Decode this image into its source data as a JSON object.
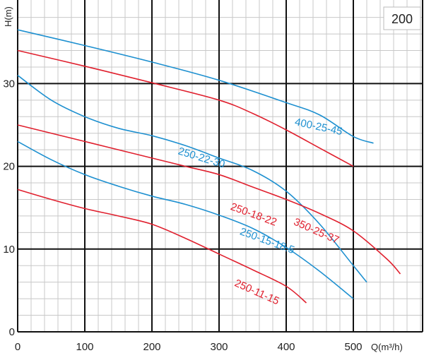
{
  "chart_data": {
    "type": "line",
    "badge": "200",
    "xlabel": "Q(m³/h)",
    "ylabel": "H(m)",
    "xlim": [
      0,
      600
    ],
    "ylim": [
      0,
      39
    ],
    "xticks": [
      0,
      100,
      200,
      300,
      400,
      500
    ],
    "yticks": [
      0,
      10,
      20,
      30
    ],
    "grid": true,
    "colors": {
      "blue": "#1e90d0",
      "red": "#e0202e"
    },
    "series": [
      {
        "name": "400-25-45",
        "color": "blue",
        "points": [
          [
            0,
            36.5
          ],
          [
            100,
            34.6
          ],
          [
            200,
            32.6
          ],
          [
            300,
            30.4
          ],
          [
            400,
            27.7
          ],
          [
            450,
            26.2
          ],
          [
            500,
            23.6
          ],
          [
            530,
            22.8
          ]
        ]
      },
      {
        "name": "350-25-37",
        "color": "red",
        "points": [
          [
            0,
            34
          ],
          [
            100,
            32.1
          ],
          [
            200,
            30.1
          ],
          [
            300,
            28
          ],
          [
            350,
            26.4
          ],
          [
            400,
            24.4
          ],
          [
            450,
            22.2
          ],
          [
            500,
            20
          ]
        ]
      },
      {
        "name": "250-22-30",
        "color": "blue",
        "points": [
          [
            0,
            31
          ],
          [
            50,
            28
          ],
          [
            100,
            26
          ],
          [
            150,
            24.6
          ],
          [
            200,
            23.7
          ],
          [
            250,
            22.5
          ],
          [
            300,
            21
          ],
          [
            350,
            19.5
          ],
          [
            400,
            17
          ],
          [
            450,
            13
          ],
          [
            500,
            8
          ],
          [
            520,
            6
          ]
        ]
      },
      {
        "name": "250-18-22",
        "color": "red",
        "points": [
          [
            0,
            25
          ],
          [
            100,
            23
          ],
          [
            200,
            21
          ],
          [
            250,
            20
          ],
          [
            300,
            19
          ],
          [
            350,
            17.5
          ],
          [
            400,
            16
          ],
          [
            450,
            14.3
          ],
          [
            500,
            12.2
          ],
          [
            550,
            8.8
          ],
          [
            570,
            7
          ]
        ]
      },
      {
        "name": "250-15-18.5",
        "color": "blue",
        "points": [
          [
            0,
            23
          ],
          [
            50,
            20.8
          ],
          [
            100,
            19
          ],
          [
            150,
            17.6
          ],
          [
            200,
            16.4
          ],
          [
            250,
            15.4
          ],
          [
            300,
            14.1
          ],
          [
            350,
            12.5
          ],
          [
            400,
            10.2
          ],
          [
            450,
            7.3
          ],
          [
            500,
            4
          ]
        ]
      },
      {
        "name": "250-11-15",
        "color": "red",
        "points": [
          [
            0,
            17.2
          ],
          [
            50,
            16
          ],
          [
            100,
            14.9
          ],
          [
            150,
            14
          ],
          [
            200,
            13
          ],
          [
            250,
            11.3
          ],
          [
            300,
            9.4
          ],
          [
            350,
            7.5
          ],
          [
            400,
            5.5
          ],
          [
            430,
            3.5
          ]
        ]
      }
    ]
  }
}
